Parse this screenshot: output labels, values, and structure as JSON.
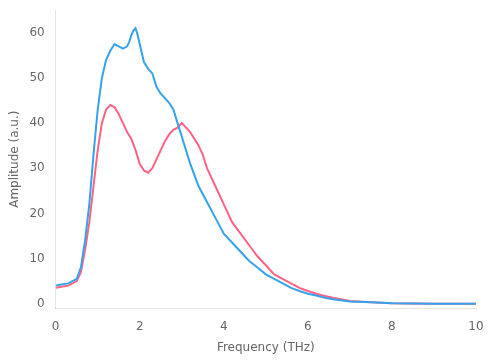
{
  "chart_data": {
    "type": "line",
    "xlabel": "Frequency (THz)",
    "ylabel": "Amplitude (a.u.)",
    "xlim": [
      0,
      10
    ],
    "ylim": [
      -1,
      65
    ],
    "xticks": [
      0,
      2,
      4,
      6,
      8,
      10
    ],
    "yticks": [
      0,
      10,
      20,
      30,
      40,
      50,
      60
    ],
    "grid": false,
    "series": [
      {
        "x": [
          0.0,
          0.1,
          0.3,
          0.5,
          0.6,
          0.7,
          0.8,
          0.9,
          1.0,
          1.1,
          1.2,
          1.3,
          1.4,
          1.5,
          1.6,
          1.7,
          1.75,
          1.8,
          1.85,
          1.9,
          1.95,
          2.0,
          2.1,
          2.2,
          2.3,
          2.4,
          2.5,
          2.6,
          2.7,
          2.8,
          2.9,
          3.0,
          3.2,
          3.4,
          3.6,
          3.8,
          4.0,
          4.2,
          4.4,
          4.6,
          4.8,
          5.0,
          5.2,
          5.4,
          5.6,
          5.8,
          6.0,
          6.2,
          6.4,
          6.6,
          7.0,
          7.5,
          8.0,
          9.0,
          10.0
        ],
        "values": [
          4.0,
          4.2,
          4.5,
          5.5,
          8.0,
          14.0,
          22.0,
          33.0,
          43.0,
          50.0,
          54.0,
          56.0,
          57.5,
          57.0,
          56.5,
          57.0,
          58.0,
          59.5,
          60.5,
          61.0,
          59.5,
          57.5,
          53.5,
          52.0,
          51.0,
          48.0,
          46.5,
          45.5,
          44.5,
          43.0,
          40.0,
          37.0,
          31.0,
          26.0,
          22.5,
          19.0,
          15.5,
          13.5,
          11.5,
          9.5,
          8.0,
          6.5,
          5.5,
          4.5,
          3.5,
          2.8,
          2.2,
          1.8,
          1.3,
          1.0,
          0.5,
          0.3,
          0.1,
          0.0,
          0.0
        ]
      },
      {
        "x": [
          0.0,
          0.1,
          0.3,
          0.5,
          0.6,
          0.7,
          0.8,
          0.9,
          1.0,
          1.1,
          1.2,
          1.3,
          1.4,
          1.5,
          1.6,
          1.7,
          1.8,
          1.9,
          2.0,
          2.1,
          2.2,
          2.3,
          2.4,
          2.5,
          2.6,
          2.7,
          2.8,
          2.9,
          3.0,
          3.2,
          3.4,
          3.5,
          3.6,
          3.8,
          4.0,
          4.2,
          4.4,
          4.6,
          4.8,
          5.0,
          5.2,
          5.4,
          5.6,
          5.8,
          6.0,
          6.2,
          6.4,
          6.6,
          7.0,
          7.5,
          8.0,
          9.0,
          10.0
        ],
        "values": [
          3.5,
          3.7,
          4.0,
          5.0,
          7.0,
          12.0,
          18.0,
          26.0,
          34.0,
          40.0,
          43.0,
          44.0,
          43.5,
          42.0,
          40.0,
          38.0,
          36.5,
          34.0,
          31.0,
          29.5,
          29.0,
          30.0,
          32.0,
          34.0,
          36.0,
          37.5,
          38.5,
          39.0,
          40.0,
          38.0,
          35.0,
          33.0,
          30.0,
          26.0,
          22.0,
          18.0,
          15.5,
          13.0,
          10.5,
          8.5,
          6.5,
          5.5,
          4.5,
          3.5,
          2.8,
          2.2,
          1.7,
          1.3,
          0.6,
          0.3,
          0.1,
          0.0,
          0.0
        ]
      }
    ]
  }
}
